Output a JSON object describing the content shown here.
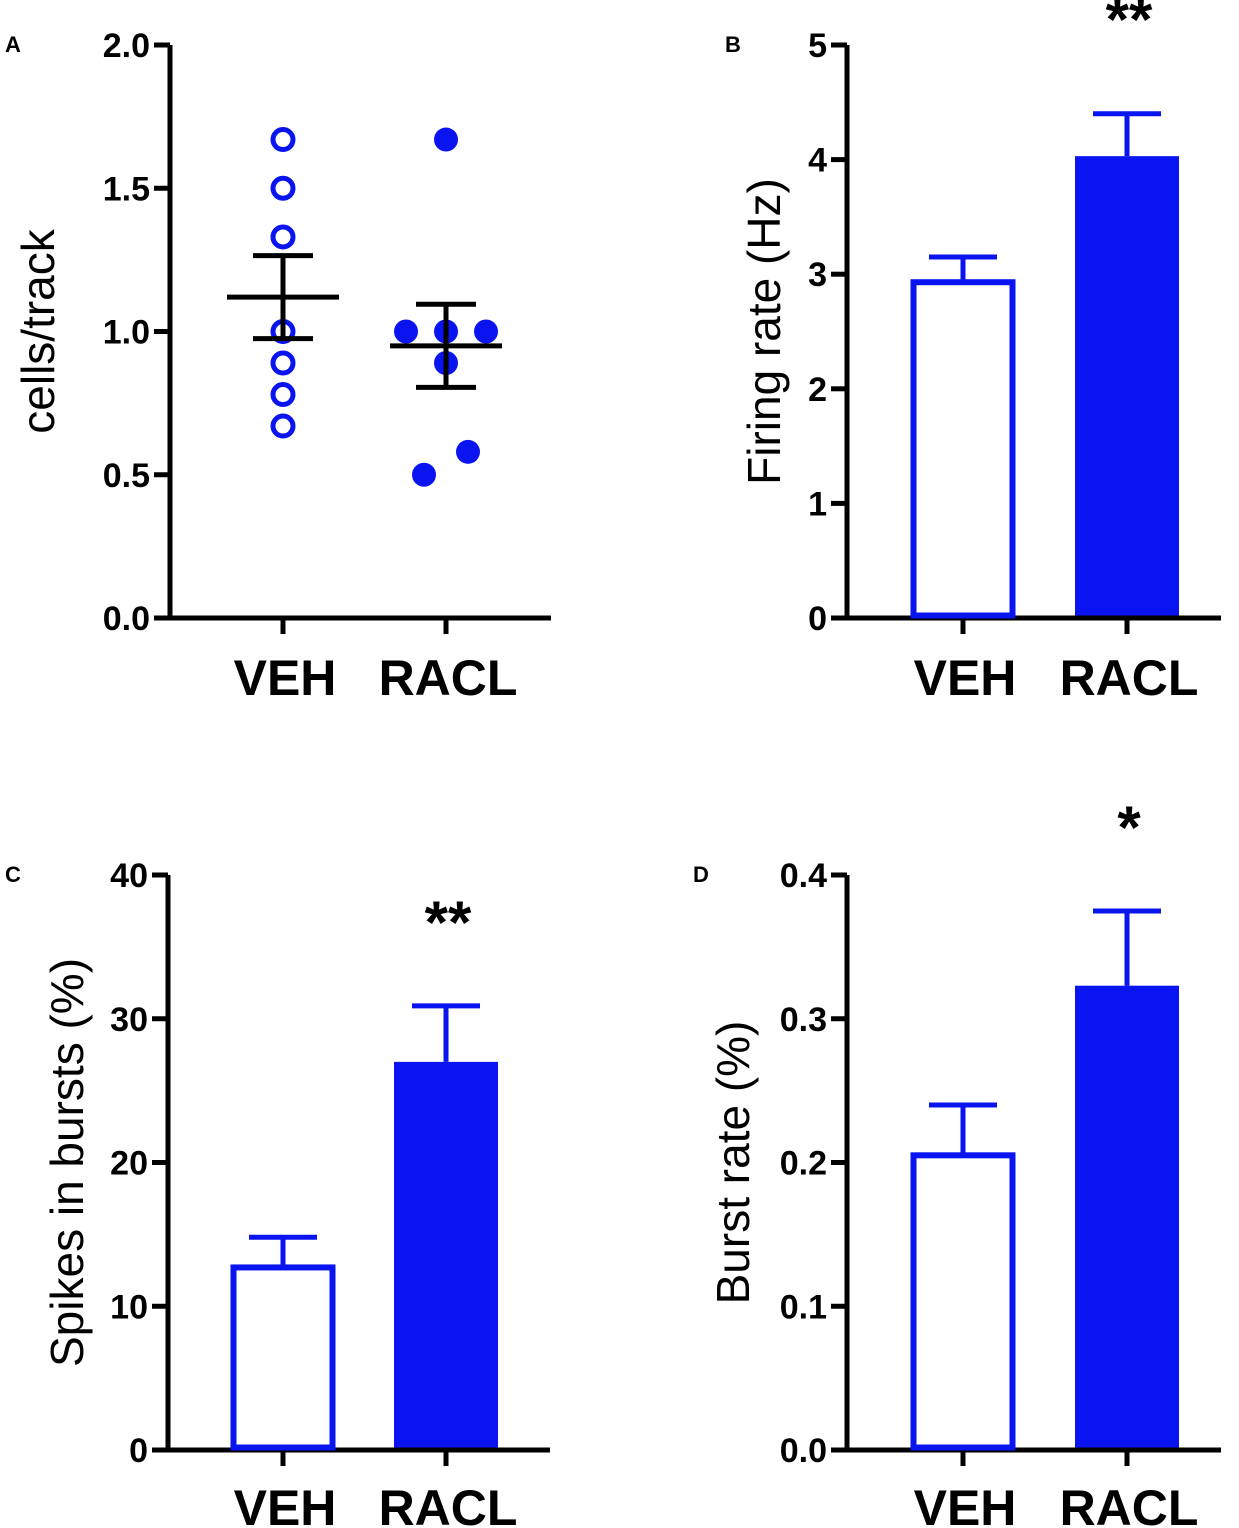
{
  "colors": {
    "series": "#0a14f0",
    "axis": "#000000"
  },
  "chart_data": [
    {
      "panel": "A",
      "type": "scatter",
      "ylabel": "cells/track",
      "ylim": [
        0,
        2
      ],
      "yticks": [
        0,
        0.5,
        1,
        1.5,
        2
      ],
      "ytick_labels": [
        "0.0",
        "0.5",
        "1.0",
        "1.5",
        "2.0"
      ],
      "categories": [
        "VEH",
        "RACL"
      ],
      "groups": [
        {
          "name": "VEH",
          "fill": "open",
          "values": [
            1.67,
            1.5,
            1.33,
            1.0,
            0.89,
            0.78,
            0.67
          ],
          "mean": 1.12,
          "sem": 0.145
        },
        {
          "name": "RACL",
          "fill": "solid",
          "values": [
            1.67,
            1.0,
            1.0,
            1.0,
            0.89,
            0.58,
            0.5
          ],
          "mean": 0.95,
          "sem": 0.145
        }
      ],
      "significance": ""
    },
    {
      "panel": "B",
      "type": "bar",
      "ylabel": "Firing rate (Hz)",
      "ylim": [
        0,
        5
      ],
      "yticks": [
        0,
        1,
        2,
        3,
        4,
        5
      ],
      "ytick_labels": [
        "0",
        "1",
        "2",
        "3",
        "4",
        "5"
      ],
      "categories": [
        "VEH",
        "RACL"
      ],
      "values": [
        2.93,
        4.03
      ],
      "errors": [
        0.22,
        0.37
      ],
      "significance": "**"
    },
    {
      "panel": "C",
      "type": "bar",
      "ylabel": "Spikes in bursts (%)",
      "ylim": [
        0,
        40
      ],
      "yticks": [
        0,
        10,
        20,
        30,
        40
      ],
      "ytick_labels": [
        "0",
        "10",
        "20",
        "30",
        "40"
      ],
      "categories": [
        "VEH",
        "RACL"
      ],
      "values": [
        12.7,
        27.0
      ],
      "errors": [
        2.1,
        3.9
      ],
      "significance": "**"
    },
    {
      "panel": "D",
      "type": "bar",
      "ylabel": "Burst rate (%)",
      "ylim": [
        0,
        0.4
      ],
      "yticks": [
        0,
        0.1,
        0.2,
        0.3,
        0.4
      ],
      "ytick_labels": [
        "0.0",
        "0.1",
        "0.2",
        "0.3",
        "0.4"
      ],
      "categories": [
        "VEH",
        "RACL"
      ],
      "values": [
        0.205,
        0.323
      ],
      "errors": [
        0.035,
        0.052
      ],
      "significance": "*"
    }
  ]
}
